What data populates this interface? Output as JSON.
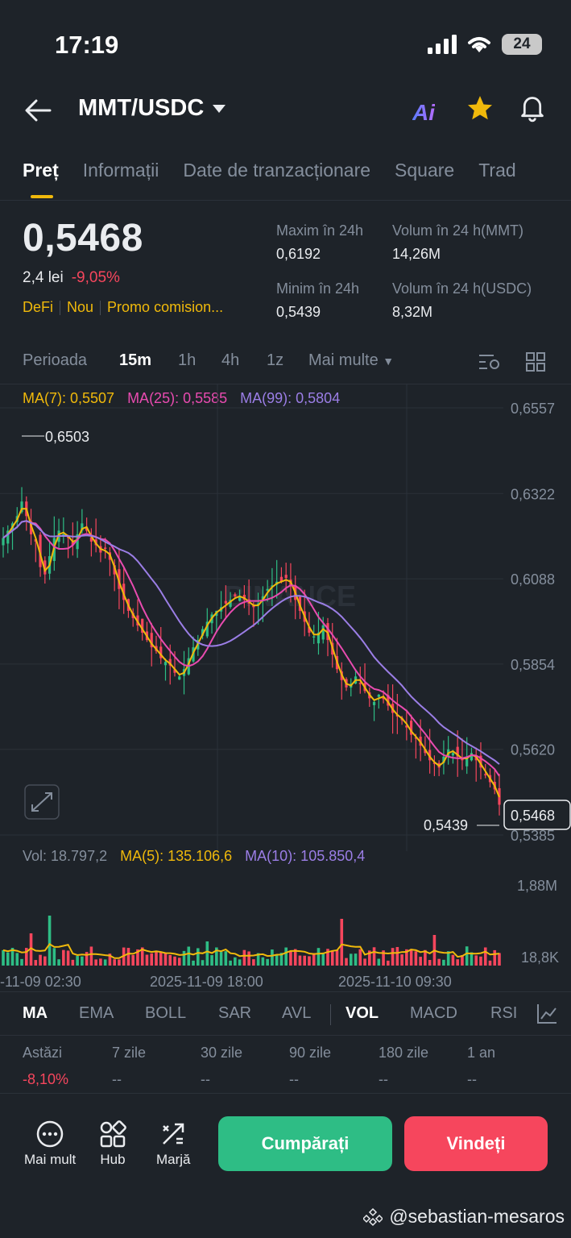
{
  "status_bar": {
    "time": "17:19",
    "battery": "24"
  },
  "header": {
    "pair": "MMT/USDC"
  },
  "tabs": [
    "Preț",
    "Informații",
    "Date de tranzacționare",
    "Square",
    "Trad"
  ],
  "price": {
    "last": "0,5468",
    "fiat": "2,4 lei",
    "change": "-9,05%",
    "tags": [
      "DeFi",
      "Nou",
      "Promo comision..."
    ]
  },
  "stats": {
    "high_label": "Maxim în 24h",
    "high_value": "0,6192",
    "low_label": "Minim în 24h",
    "low_value": "0,5439",
    "vol_base_label": "Volum în 24 h(MMT)",
    "vol_base_value": "14,26M",
    "vol_quote_label": "Volum în 24 h(USDC)",
    "vol_quote_value": "8,32M"
  },
  "periods": {
    "label": "Perioada",
    "items": [
      "15m",
      "1h",
      "4h",
      "1z"
    ],
    "more": "Mai multe",
    "active": "15m"
  },
  "ma_legend": {
    "ma7": "MA(7): 0,5507",
    "ma25": "MA(25): 0,5585",
    "ma99": "MA(99): 0,5804"
  },
  "colors": {
    "ma7": "#f0b90b",
    "ma25": "#e94bb0",
    "ma99": "#9b7ee6",
    "up": "#2ebd85",
    "down": "#f6465d"
  },
  "chart_data": {
    "type": "candlestick",
    "y_ticks": [
      "0,6557",
      "0,6322",
      "0,6088",
      "0,5854",
      "0,5620",
      "0,5385"
    ],
    "ylim": [
      0.5385,
      0.6557
    ],
    "high_marker": "0,6503",
    "low_marker": "0,5439",
    "current_price_tag": "0,5468",
    "x_ticks": [
      "-11-09 02:30",
      "2025-11-09 18:00",
      "2025-11-10 09:30"
    ],
    "watermark": "BINANCE",
    "close_path": [
      0.62,
      0.622,
      0.624,
      0.626,
      0.63,
      0.626,
      0.621,
      0.619,
      0.612,
      0.61,
      0.615,
      0.62,
      0.622,
      0.621,
      0.62,
      0.618,
      0.621,
      0.624,
      0.622,
      0.619,
      0.618,
      0.616,
      0.617,
      0.614,
      0.61,
      0.606,
      0.603,
      0.6,
      0.598,
      0.596,
      0.594,
      0.592,
      0.59,
      0.589,
      0.587,
      0.586,
      0.585,
      0.583,
      0.582,
      0.584,
      0.587,
      0.59,
      0.592,
      0.595,
      0.597,
      0.599,
      0.6,
      0.601,
      0.602,
      0.603,
      0.604,
      0.604,
      0.603,
      0.602,
      0.601,
      0.602,
      0.604,
      0.606,
      0.607,
      0.608,
      0.608,
      0.609,
      0.607,
      0.603,
      0.6,
      0.597,
      0.594,
      0.593,
      0.594,
      0.596,
      0.592,
      0.588,
      0.584,
      0.581,
      0.579,
      0.58,
      0.582,
      0.58,
      0.578,
      0.576,
      0.575,
      0.577,
      0.576,
      0.574,
      0.572,
      0.571,
      0.57,
      0.568,
      0.566,
      0.565,
      0.563,
      0.561,
      0.559,
      0.558,
      0.557,
      0.56,
      0.562,
      0.561,
      0.56,
      0.559,
      0.56,
      0.561,
      0.559,
      0.557,
      0.555,
      0.553,
      0.551,
      0.5468
    ]
  },
  "vol_legend": {
    "vol": "Vol: 18.797,2",
    "ma5": "MA(5): 135.106,6",
    "ma10": "MA(10): 105.850,4"
  },
  "vol_ticks": [
    "1,88M",
    "18,8K"
  ],
  "indicators": [
    "MA",
    "EMA",
    "BOLL",
    "SAR",
    "AVL",
    "VOL",
    "MACD",
    "RSI"
  ],
  "performance": {
    "labels": [
      "Astăzi",
      "7 zile",
      "30 zile",
      "90 zile",
      "180 zile",
      "1 an"
    ],
    "values": [
      "-8,10%",
      "--",
      "--",
      "--",
      "--",
      "--"
    ]
  },
  "bottom_bar": {
    "more": "Mai mult",
    "hub": "Hub",
    "margin": "Marjă",
    "buy": "Cumpărați",
    "sell": "Vindeți"
  },
  "watermark": "@sebastian-mesaros"
}
